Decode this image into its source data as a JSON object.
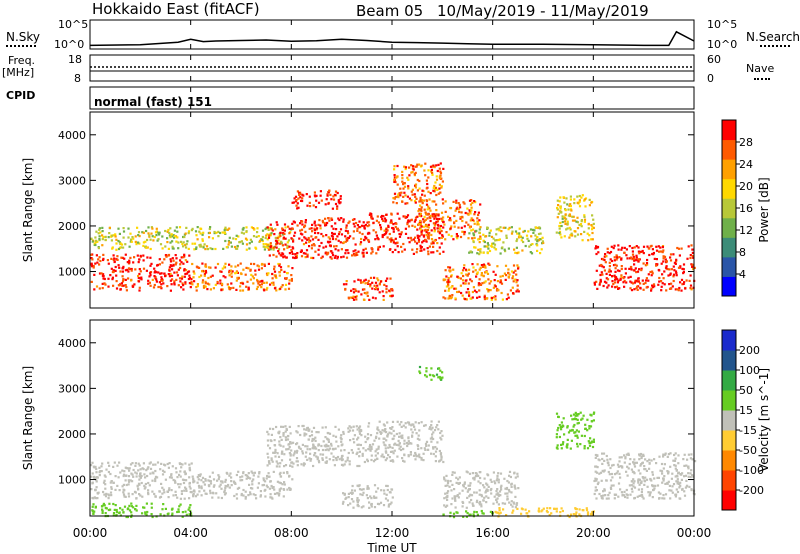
{
  "header": {
    "radar_name": "Hokkaido East (fitACF)",
    "beam_label": "Beam 05",
    "date_range": "10/May/2019 - 11/May/2019"
  },
  "top_panels": {
    "nsky_label": "N.Sky",
    "nsearch_label": "N.Search",
    "noise_ticks_left": [
      "10^5",
      "10^0"
    ],
    "noise_ticks_right": [
      "10^5",
      "10^0"
    ],
    "freq_label": "Freq.",
    "freq_unit": "[MHz]",
    "freq_ticks": [
      "18",
      "8"
    ],
    "nave_label": "Nave",
    "nave_ticks": [
      "60",
      "0"
    ],
    "cpid_label": "CPID",
    "mode_text": "normal (fast) 151"
  },
  "power_panel": {
    "ylabel": "Slant Range [km]",
    "yticks": [
      "4000",
      "3000",
      "2000",
      "1000"
    ],
    "colorbar_label": "Power [dB]",
    "colorbar_ticks": [
      "28",
      "24",
      "20",
      "16",
      "12",
      "8",
      "4"
    ]
  },
  "velocity_panel": {
    "ylabel": "Slant Range [km]",
    "yticks": [
      "4000",
      "3000",
      "2000",
      "1000"
    ],
    "colorbar_label": "Velocity [m s^-1]",
    "colorbar_ticks": [
      "200",
      "100",
      "50",
      "15",
      "-15",
      "-50",
      "-100",
      "-200"
    ]
  },
  "x_axis": {
    "ticks": [
      "00:00",
      "04:00",
      "08:00",
      "12:00",
      "16:00",
      "20:00",
      "00:00"
    ],
    "label": "Time UT"
  },
  "colors": {
    "power_scale": [
      "#0000ff",
      "#2a55a8",
      "#3c8c78",
      "#6fb04a",
      "#b8c838",
      "#ffd800",
      "#ffa000",
      "#ff5a00",
      "#ff0000"
    ],
    "velocity_scale": [
      "#ff0000",
      "#ff4400",
      "#ff8800",
      "#ffcc33",
      "#c0c0b8",
      "#66cc22",
      "#33aa44",
      "#22558c",
      "#1a2acc"
    ]
  },
  "chart_data": [
    {
      "type": "line",
      "title": "N.Sky",
      "y_scale": "log",
      "ylim": [
        1,
        100000
      ],
      "x_hours": [
        0,
        2,
        3.5,
        4,
        4.5,
        5,
        6,
        7,
        8,
        9,
        10,
        11,
        12,
        13,
        14,
        15,
        16,
        18,
        20,
        22,
        23,
        23.3,
        24
      ],
      "values": [
        3,
        4,
        12,
        40,
        15,
        20,
        25,
        30,
        18,
        22,
        40,
        25,
        12,
        10,
        8,
        6,
        5,
        5,
        4,
        3,
        3,
        1000,
        20
      ]
    },
    {
      "type": "scatter",
      "title": "Power",
      "x_label": "Time UT",
      "y_label": "Slant Range [km]",
      "x_range_hours": [
        0,
        24
      ],
      "ylim": [
        200,
        4500
      ],
      "colorbar": {
        "label": "Power [dB]",
        "range": [
          0,
          30
        ]
      },
      "regions": [
        {
          "t0": 0,
          "t1": 4,
          "r0": 600,
          "r1": 1400,
          "value": 28
        },
        {
          "t0": 0,
          "t1": 4,
          "r0": 1500,
          "r1": 2000,
          "value": 16
        },
        {
          "t0": 4,
          "t1": 8,
          "r0": 600,
          "r1": 1200,
          "value": 24
        },
        {
          "t0": 4,
          "t1": 8,
          "r0": 1500,
          "r1": 2000,
          "value": 16
        },
        {
          "t0": 7,
          "t1": 11,
          "r0": 1300,
          "r1": 2200,
          "value": 28
        },
        {
          "t0": 8,
          "t1": 10,
          "r0": 2400,
          "r1": 2800,
          "value": 28
        },
        {
          "t0": 10,
          "t1": 12,
          "r0": 400,
          "r1": 900,
          "value": 26
        },
        {
          "t0": 11,
          "t1": 14,
          "r0": 1400,
          "r1": 2300,
          "value": 28
        },
        {
          "t0": 12,
          "t1": 14,
          "r0": 2500,
          "r1": 3400,
          "value": 24
        },
        {
          "t0": 13,
          "t1": 15.5,
          "r0": 1700,
          "r1": 2600,
          "value": 24
        },
        {
          "t0": 14,
          "t1": 17,
          "r0": 400,
          "r1": 1200,
          "value": 24
        },
        {
          "t0": 15,
          "t1": 18,
          "r0": 1400,
          "r1": 2000,
          "value": 16
        },
        {
          "t0": 18.5,
          "t1": 20,
          "r0": 1700,
          "r1": 2700,
          "value": 18
        },
        {
          "t0": 20,
          "t1": 24,
          "r0": 600,
          "r1": 1600,
          "value": 28
        }
      ]
    },
    {
      "type": "scatter",
      "title": "Velocity",
      "x_label": "Time UT",
      "y_label": "Slant Range [km]",
      "x_range_hours": [
        0,
        24
      ],
      "ylim": [
        200,
        4500
      ],
      "colorbar": {
        "label": "Velocity [m s^-1]",
        "range": [
          -200,
          200
        ]
      },
      "regions": [
        {
          "t0": 0,
          "t1": 4,
          "r0": 600,
          "r1": 1400,
          "value": 0
        },
        {
          "t0": 0,
          "t1": 4,
          "r0": 200,
          "r1": 500,
          "value": 40
        },
        {
          "t0": 4,
          "t1": 8,
          "r0": 600,
          "r1": 1200,
          "value": 0
        },
        {
          "t0": 7,
          "t1": 11,
          "r0": 1300,
          "r1": 2200,
          "value": 0
        },
        {
          "t0": 10,
          "t1": 12,
          "r0": 400,
          "r1": 900,
          "value": 0
        },
        {
          "t0": 11,
          "t1": 14,
          "r0": 1400,
          "r1": 2300,
          "value": 0
        },
        {
          "t0": 13,
          "t1": 14,
          "r0": 3200,
          "r1": 3500,
          "value": 60
        },
        {
          "t0": 14,
          "t1": 17,
          "r0": 400,
          "r1": 1200,
          "value": 0
        },
        {
          "t0": 14,
          "t1": 16,
          "r0": 200,
          "r1": 350,
          "value": 40
        },
        {
          "t0": 18.5,
          "t1": 20,
          "r0": 1700,
          "r1": 2500,
          "value": 40
        },
        {
          "t0": 20,
          "t1": 24,
          "r0": 600,
          "r1": 1600,
          "value": 0
        },
        {
          "t0": 16,
          "t1": 20,
          "r0": 200,
          "r1": 400,
          "value": -40
        }
      ]
    }
  ]
}
